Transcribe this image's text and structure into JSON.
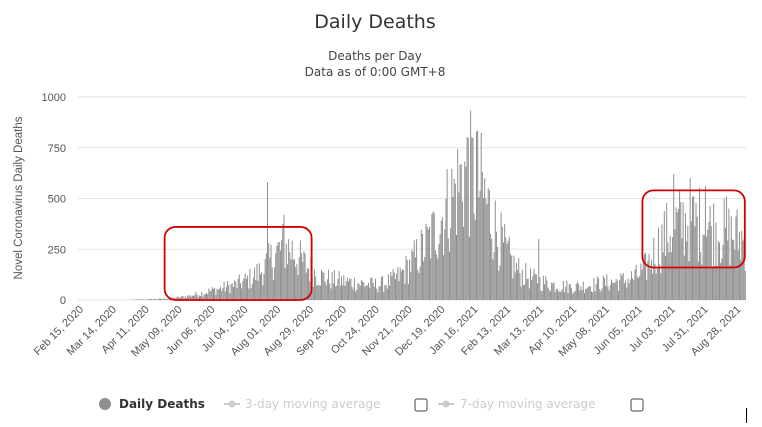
{
  "colors": {
    "bar": "#8f8f8f",
    "grid": "#e6e6e6",
    "highlight": "#d40000",
    "legend_inactive": "#cccccc",
    "legend_active": "#333333"
  },
  "chart_data": {
    "type": "bar",
    "title": "Daily Deaths",
    "subtitle_lines": [
      "Deaths per Day",
      "Data as of 0:00 GMT+8"
    ],
    "ylabel": "Novel Coronavirus Daily Deaths",
    "ylim": [
      0,
      1000
    ],
    "yticks": [
      "0",
      "250",
      "500",
      "750",
      "1000"
    ],
    "grid": true,
    "x_tick_labels": [
      "Feb 15, 2020",
      "Mar 14, 2020",
      "Apr 11, 2020",
      "May 09, 2020",
      "Jun 06, 2020",
      "Jul 04, 2020",
      "Aug 01, 2020",
      "Aug 29, 2020",
      "Sep 26, 2020",
      "Oct 24, 2020",
      "Nov 21, 2020",
      "Dec 19, 2020",
      "Jan 16, 2021",
      "Feb 13, 2021",
      "Mar 13, 2021",
      "Apr 10, 2021",
      "May 08, 2021",
      "Jun 05, 2021",
      "Jul 03, 2021",
      "Jul 31, 2021",
      "Aug 28, 2021"
    ],
    "series": [
      {
        "name": "Daily Deaths",
        "points_note_units": "weekly approximate values, [date, deaths]",
        "values": [
          [
            "2020-02-15",
            0
          ],
          [
            "2020-02-22",
            0
          ],
          [
            "2020-02-29",
            0
          ],
          [
            "2020-03-07",
            0
          ],
          [
            "2020-03-14",
            0
          ],
          [
            "2020-03-21",
            0
          ],
          [
            "2020-03-28",
            0
          ],
          [
            "2020-04-04",
            2
          ],
          [
            "2020-04-11",
            3
          ],
          [
            "2020-04-18",
            4
          ],
          [
            "2020-04-25",
            5
          ],
          [
            "2020-05-02",
            8
          ],
          [
            "2020-05-09",
            12
          ],
          [
            "2020-05-16",
            18
          ],
          [
            "2020-05-23",
            25
          ],
          [
            "2020-05-30",
            35
          ],
          [
            "2020-06-06",
            45
          ],
          [
            "2020-06-13",
            55
          ],
          [
            "2020-06-20",
            65
          ],
          [
            "2020-06-27",
            75
          ],
          [
            "2020-07-04",
            90
          ],
          [
            "2020-07-11",
            110
          ],
          [
            "2020-07-18",
            140
          ],
          [
            "2020-07-25",
            180
          ],
          [
            "2020-08-01",
            230
          ],
          [
            "2020-08-08",
            270
          ],
          [
            "2020-08-15",
            250
          ],
          [
            "2020-08-22",
            200
          ],
          [
            "2020-08-29",
            160
          ],
          [
            "2020-09-05",
            130
          ],
          [
            "2020-09-12",
            110
          ],
          [
            "2020-09-19",
            100
          ],
          [
            "2020-09-26",
            95
          ],
          [
            "2020-10-03",
            90
          ],
          [
            "2020-10-10",
            85
          ],
          [
            "2020-10-17",
            80
          ],
          [
            "2020-10-24",
            75
          ],
          [
            "2020-10-31",
            80
          ],
          [
            "2020-11-07",
            95
          ],
          [
            "2020-11-14",
            120
          ],
          [
            "2020-11-21",
            160
          ],
          [
            "2020-11-28",
            210
          ],
          [
            "2020-12-05",
            260
          ],
          [
            "2020-12-12",
            320
          ],
          [
            "2020-12-19",
            400
          ],
          [
            "2020-12-26",
            470
          ],
          [
            "2021-01-02",
            560
          ],
          [
            "2021-01-09",
            640
          ],
          [
            "2021-01-16",
            620
          ],
          [
            "2021-01-23",
            560
          ],
          [
            "2021-01-30",
            450
          ],
          [
            "2021-02-06",
            330
          ],
          [
            "2021-02-13",
            240
          ],
          [
            "2021-02-20",
            170
          ],
          [
            "2021-02-27",
            130
          ],
          [
            "2021-03-06",
            110
          ],
          [
            "2021-03-13",
            95
          ],
          [
            "2021-03-20",
            85
          ],
          [
            "2021-03-27",
            75
          ],
          [
            "2021-04-03",
            70
          ],
          [
            "2021-04-10",
            65
          ],
          [
            "2021-04-17",
            70
          ],
          [
            "2021-04-24",
            75
          ],
          [
            "2021-05-01",
            80
          ],
          [
            "2021-05-08",
            85
          ],
          [
            "2021-05-15",
            90
          ],
          [
            "2021-05-22",
            95
          ],
          [
            "2021-05-29",
            105
          ],
          [
            "2021-06-05",
            120
          ],
          [
            "2021-06-12",
            160
          ],
          [
            "2021-06-19",
            230
          ],
          [
            "2021-06-26",
            300
          ],
          [
            "2021-07-03",
            350
          ],
          [
            "2021-07-10",
            380
          ],
          [
            "2021-07-17",
            400
          ],
          [
            "2021-07-24",
            390
          ],
          [
            "2021-07-31",
            380
          ],
          [
            "2021-08-07",
            360
          ],
          [
            "2021-08-14",
            350
          ],
          [
            "2021-08-21",
            330
          ],
          [
            "2021-08-28",
            320
          ],
          [
            "2021-09-04",
            300
          ]
        ]
      }
    ],
    "spikes": [
      [
        "2020-07-25",
        580
      ],
      [
        "2020-08-08",
        420
      ],
      [
        "2021-01-12",
        800
      ],
      [
        "2021-01-19",
        830
      ],
      [
        "2021-03-13",
        300
      ],
      [
        "2021-07-06",
        620
      ],
      [
        "2021-07-20",
        600
      ],
      [
        "2021-08-02",
        560
      ],
      [
        "2021-08-20",
        510
      ]
    ],
    "highlight_boxes": [
      {
        "from": "2020-05-09",
        "to": "2020-09-01",
        "y_from": 0,
        "y_to": 360
      },
      {
        "from": "2021-06-20",
        "to": "2021-09-05",
        "y_from": 160,
        "y_to": 540
      }
    ]
  },
  "legend": {
    "items": [
      {
        "label": "Daily Deaths",
        "active": true,
        "has_checkbox": false
      },
      {
        "label": "3-day moving average",
        "active": false,
        "has_checkbox": true
      },
      {
        "label": "7-day moving average",
        "active": false,
        "has_checkbox": true
      }
    ]
  }
}
